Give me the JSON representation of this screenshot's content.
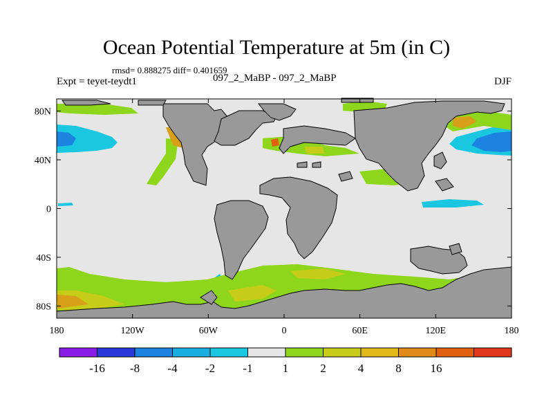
{
  "title": "Ocean Potential Temperature at 5m (in C)",
  "stats": "rmsd= 0.888275 diff= 0.401659",
  "experiment": "Expt = teyet-teydt1",
  "experiment_label": "097_2_MaBP - 097_2_MaBP",
  "season": "DJF",
  "colors": {
    "land": "#999999",
    "ocean_neutral": "#e6e6e6",
    "green": "#8ed61c",
    "yellow_green": "#c6cc18",
    "gold": "#d8a018",
    "orange": "#e06010",
    "cyan": "#1ac7e0",
    "blue": "#1c84e0"
  },
  "map": {
    "x_axis": {
      "range": [
        -180,
        180
      ],
      "ticks": [
        {
          "value": -180,
          "label": "180"
        },
        {
          "value": -120,
          "label": "120W"
        },
        {
          "value": -60,
          "label": "60W"
        },
        {
          "value": 0,
          "label": "0"
        },
        {
          "value": 60,
          "label": "60E"
        },
        {
          "value": 120,
          "label": "120E"
        },
        {
          "value": 180,
          "label": "180"
        }
      ]
    },
    "y_axis": {
      "range": [
        -90,
        90
      ],
      "ticks": [
        {
          "value": 80,
          "label": "80N"
        },
        {
          "value": 40,
          "label": "40N"
        },
        {
          "value": 0,
          "label": "0"
        },
        {
          "value": -40,
          "label": "40S"
        },
        {
          "value": -80,
          "label": "80S"
        }
      ]
    }
  },
  "colorbar": {
    "colors": [
      "#8a1ee6",
      "#2a3ad8",
      "#1c84e0",
      "#18aee0",
      "#1ac7e0",
      "#e6e6e6",
      "#8ed61c",
      "#c6cc18",
      "#e0b818",
      "#e08a18",
      "#e06010",
      "#e0381a"
    ],
    "labels": [
      "-16",
      "-8",
      "-4",
      "-2",
      "-1",
      "1",
      "2",
      "4",
      "8",
      "16"
    ]
  }
}
